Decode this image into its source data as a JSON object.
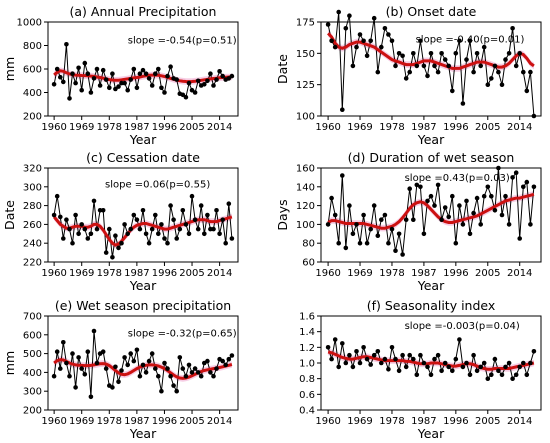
{
  "colors": {
    "observed": "#000000",
    "smooth": "#cc1111",
    "band": "#f2b8d8"
  },
  "chart_data": [
    {
      "type": "line",
      "title": "(a) Annual Precipitation",
      "annotation": "slope =-0.54(p=0.51)",
      "xlabel": "Year",
      "ylabel": "mm",
      "ylim": [
        200,
        1000
      ],
      "yticks": [
        200,
        400,
        600,
        800,
        1000
      ],
      "xlim": [
        1958,
        2020
      ],
      "xticks": [
        1960,
        1969,
        1978,
        1987,
        1996,
        2005,
        2014
      ],
      "x_start": 1960,
      "series": [
        {
          "role": "observed",
          "values": [
            470,
            600,
            530,
            490,
            810,
            350,
            560,
            480,
            610,
            420,
            650,
            560,
            400,
            520,
            600,
            460,
            590,
            510,
            440,
            560,
            430,
            450,
            480,
            480,
            420,
            510,
            600,
            440,
            560,
            590,
            560,
            520,
            460,
            560,
            600,
            440,
            400,
            540,
            620,
            520,
            510,
            390,
            380,
            360,
            480,
            420,
            400,
            500,
            460,
            470,
            500,
            560,
            460,
            510,
            580,
            540,
            510,
            520,
            540
          ]
        },
        {
          "role": "smooth",
          "values": [
            550,
            572,
            585,
            580,
            568,
            558,
            552,
            548,
            546,
            545,
            544,
            542,
            540,
            537,
            532,
            528,
            522,
            516,
            510,
            506,
            504,
            505,
            508,
            512,
            516,
            520,
            524,
            528,
            532,
            538,
            542,
            546,
            548,
            548,
            546,
            542,
            536,
            528,
            520,
            512,
            505,
            500,
            496,
            494,
            493,
            494,
            496,
            500,
            504,
            508,
            512,
            516,
            519,
            522,
            525,
            528,
            530,
            532,
            533
          ]
        }
      ]
    },
    {
      "type": "line",
      "title": "(b) Onset date",
      "annotation": "slope =-0.40(p=0.01)",
      "xlabel": "Year",
      "ylabel": "Date",
      "ylim": [
        100,
        175
      ],
      "yticks": [
        100,
        125,
        150,
        175
      ],
      "xlim": [
        1958,
        2020
      ],
      "xticks": [
        1960,
        1969,
        1978,
        1987,
        1996,
        2005,
        2014
      ],
      "x_start": 1960,
      "series": [
        {
          "role": "observed",
          "values": [
            173,
            160,
            155,
            183,
            105,
            170,
            180,
            140,
            155,
            165,
            160,
            148,
            160,
            178,
            135,
            155,
            170,
            165,
            160,
            140,
            150,
            148,
            130,
            135,
            150,
            140,
            160,
            140,
            132,
            150,
            140,
            135,
            150,
            145,
            140,
            120,
            150,
            160,
            110,
            145,
            160,
            135,
            150,
            140,
            155,
            125,
            130,
            140,
            135,
            125,
            145,
            150,
            170,
            140,
            150,
            135,
            120,
            135,
            100
          ]
        },
        {
          "role": "smooth",
          "values": [
            166,
            163,
            158,
            155,
            154,
            155,
            157,
            158,
            159,
            159,
            158,
            157,
            156,
            155,
            153,
            151,
            149,
            147,
            145,
            144,
            143,
            142,
            141,
            141,
            141,
            142,
            143,
            144,
            144,
            144,
            143,
            142,
            141,
            140,
            139,
            138,
            138,
            138,
            139,
            140,
            141,
            142,
            143,
            143,
            143,
            142,
            141,
            140,
            139,
            139,
            140,
            142,
            145,
            148,
            150,
            149,
            146,
            142,
            140
          ]
        }
      ]
    },
    {
      "type": "line",
      "title": "(c) Cessation date",
      "annotation": "slope =0.06(p=0.55)",
      "xlabel": "Year",
      "ylabel": "Date",
      "ylim": [
        220,
        320
      ],
      "yticks": [
        220,
        240,
        260,
        280,
        300,
        320
      ],
      "xlim": [
        1958,
        2020
      ],
      "xticks": [
        1960,
        1969,
        1978,
        1987,
        1996,
        2005,
        2014
      ],
      "x_start": 1960,
      "series": [
        {
          "role": "observed",
          "values": [
            270,
            290,
            268,
            245,
            265,
            255,
            240,
            270,
            250,
            260,
            255,
            245,
            250,
            285,
            255,
            275,
            275,
            230,
            255,
            225,
            248,
            235,
            240,
            260,
            250,
            255,
            270,
            265,
            255,
            275,
            250,
            240,
            255,
            270,
            250,
            260,
            245,
            240,
            280,
            265,
            245,
            255,
            275,
            260,
            250,
            290,
            265,
            255,
            280,
            250,
            270,
            255,
            255,
            275,
            250,
            265,
            240,
            282,
            245
          ]
        },
        {
          "role": "smooth",
          "values": [
            268,
            264,
            260,
            258,
            256,
            256,
            257,
            258,
            258,
            258,
            257,
            257,
            258,
            260,
            260,
            258,
            254,
            249,
            244,
            240,
            238,
            239,
            242,
            246,
            250,
            254,
            257,
            259,
            260,
            261,
            261,
            260,
            259,
            258,
            257,
            256,
            255,
            255,
            256,
            257,
            258,
            259,
            260,
            261,
            262,
            263,
            264,
            265,
            265,
            265,
            264,
            263,
            263,
            263,
            264,
            265,
            266,
            267,
            268
          ]
        }
      ]
    },
    {
      "type": "line",
      "title": "(d) Duration of wet season",
      "annotation": "slope =0.43(p=0.03)",
      "xlabel": "Year",
      "ylabel": "Days",
      "ylim": [
        60,
        160
      ],
      "yticks": [
        60,
        80,
        100,
        120,
        140,
        160
      ],
      "xlim": [
        1958,
        2020
      ],
      "xticks": [
        1960,
        1969,
        1978,
        1987,
        1996,
        2005,
        2014
      ],
      "x_start": 1960,
      "series": [
        {
          "role": "observed",
          "values": [
            100,
            128,
            110,
            80,
            152,
            75,
            120,
            90,
            100,
            80,
            110,
            80,
            95,
            120,
            88,
            105,
            110,
            80,
            95,
            72,
            90,
            68,
            105,
            138,
            105,
            142,
            140,
            90,
            125,
            130,
            120,
            142,
            105,
            118,
            108,
            130,
            80,
            120,
            100,
            125,
            90,
            112,
            128,
            100,
            130,
            140,
            130,
            115,
            160,
            110,
            130,
            100,
            150,
            155,
            85,
            140,
            145,
            100,
            140
          ]
        },
        {
          "role": "smooth",
          "values": [
            102,
            104,
            104,
            103,
            102,
            101,
            101,
            101,
            101,
            101,
            101,
            100,
            99,
            98,
            97,
            96,
            96,
            97,
            98,
            100,
            103,
            107,
            112,
            117,
            121,
            123,
            124,
            123,
            120,
            116,
            112,
            108,
            105,
            103,
            102,
            102,
            103,
            104,
            105,
            106,
            107,
            108,
            109,
            111,
            113,
            115,
            117,
            119,
            121,
            123,
            125,
            126,
            127,
            128,
            128,
            129,
            130,
            131,
            132
          ]
        }
      ]
    },
    {
      "type": "line",
      "title": "(e) Wet season precipitation",
      "annotation": "slope =-0.32(p=0.65)",
      "xlabel": "Year",
      "ylabel": "mm",
      "ylim": [
        200,
        700
      ],
      "yticks": [
        200,
        300,
        400,
        500,
        600,
        700
      ],
      "xlim": [
        1958,
        2020
      ],
      "xticks": [
        1960,
        1969,
        1978,
        1987,
        1996,
        2005,
        2014
      ],
      "x_start": 1960,
      "series": [
        {
          "role": "observed",
          "values": [
            380,
            510,
            420,
            560,
            450,
            380,
            500,
            320,
            480,
            420,
            390,
            510,
            270,
            620,
            450,
            500,
            510,
            420,
            330,
            320,
            430,
            350,
            410,
            480,
            440,
            500,
            460,
            520,
            380,
            440,
            400,
            460,
            500,
            420,
            380,
            300,
            450,
            420,
            380,
            330,
            300,
            480,
            420,
            380,
            440,
            400,
            420,
            400,
            380,
            450,
            460,
            400,
            380,
            420,
            470,
            460,
            440,
            470,
            490
          ]
        },
        {
          "role": "smooth",
          "values": [
            450,
            462,
            468,
            466,
            458,
            450,
            444,
            440,
            438,
            437,
            436,
            436,
            437,
            440,
            443,
            446,
            447,
            444,
            436,
            424,
            410,
            398,
            390,
            388,
            392,
            400,
            410,
            420,
            428,
            434,
            438,
            440,
            440,
            438,
            434,
            428,
            420,
            410,
            398,
            386,
            376,
            370,
            368,
            370,
            375,
            382,
            390,
            398,
            405,
            410,
            414,
            417,
            420,
            423,
            426,
            430,
            434,
            438,
            442
          ]
        }
      ]
    },
    {
      "type": "line",
      "title": "(f) Seasonality index",
      "annotation": "slope =-0.003(p=0.04)",
      "xlabel": "Year",
      "ylabel": "",
      "ylim": [
        0.4,
        1.6
      ],
      "yticks": [
        0.4,
        0.6,
        0.8,
        1.0,
        1.2,
        1.4,
        1.6
      ],
      "xlim": [
        1958,
        2020
      ],
      "xticks": [
        1960,
        1969,
        1978,
        1987,
        1996,
        2005,
        2014
      ],
      "x_start": 1960,
      "series": [
        {
          "role": "observed",
          "values": [
            1.2,
            1.05,
            1.3,
            0.95,
            1.25,
            1.0,
            1.1,
            0.95,
            1.15,
            1.0,
            1.2,
            1.05,
            0.98,
            1.1,
            1.15,
            1.0,
            1.05,
            0.92,
            1.2,
            1.05,
            0.9,
            1.1,
            0.95,
            1.1,
            1.05,
            0.85,
            1.1,
            1.0,
            0.95,
            0.85,
            1.05,
            1.1,
            0.9,
            1.0,
            0.95,
            0.9,
            1.05,
            1.3,
            0.95,
            1.0,
            0.85,
            1.1,
            0.9,
            0.95,
            1.0,
            0.8,
            0.85,
            1.05,
            0.9,
            0.85,
            0.95,
            1.0,
            0.8,
            0.85,
            0.95,
            1.0,
            0.85,
            1.0,
            1.15
          ]
        },
        {
          "role": "smooth",
          "values": [
            1.14,
            1.13,
            1.11,
            1.09,
            1.07,
            1.06,
            1.05,
            1.05,
            1.06,
            1.07,
            1.08,
            1.08,
            1.07,
            1.06,
            1.05,
            1.04,
            1.03,
            1.03,
            1.03,
            1.03,
            1.03,
            1.03,
            1.02,
            1.02,
            1.01,
            1.0,
            0.99,
            0.99,
            0.99,
            1.0,
            1.0,
            1.0,
            0.99,
            0.98,
            0.97,
            0.96,
            0.96,
            0.97,
            0.98,
            0.99,
            0.99,
            0.98,
            0.96,
            0.94,
            0.93,
            0.92,
            0.92,
            0.93,
            0.93,
            0.93,
            0.93,
            0.93,
            0.94,
            0.95,
            0.96,
            0.97,
            0.98,
            0.99,
            1.0
          ]
        }
      ]
    }
  ]
}
